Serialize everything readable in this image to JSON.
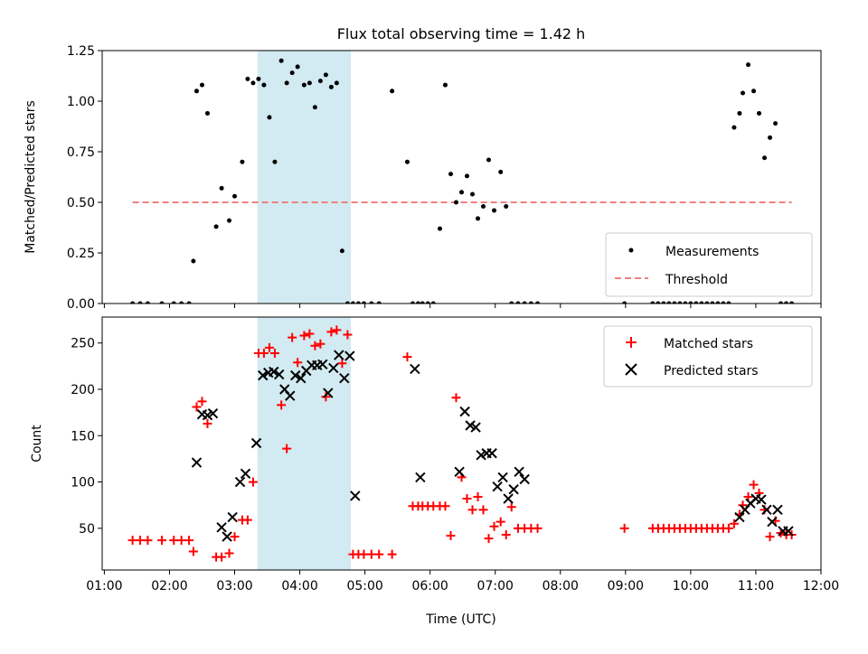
{
  "chart_data": [
    {
      "type": "scatter",
      "title": "Flux total observing time = 1.42 h",
      "xlabel": "",
      "ylabel": "Matched/Predicted stars",
      "xlim": [
        "00:58",
        "12:00"
      ],
      "ylim": [
        0,
        1.25
      ],
      "yticks": [
        "0.00",
        "0.25",
        "0.50",
        "0.75",
        "1.00",
        "1.25"
      ],
      "shaded_interval": [
        "03:21",
        "04:47"
      ],
      "shade_color": "#add8e6",
      "legend_location": "lower-right",
      "series": [
        {
          "name": "Measurements",
          "color": "#000000",
          "marker": "dot",
          "x": [
            "01:26",
            "01:33",
            "01:40",
            "01:53",
            "02:04",
            "02:11",
            "02:18",
            "02:22",
            "02:25",
            "02:30",
            "02:35",
            "02:43",
            "02:48",
            "02:55",
            "03:00",
            "03:07",
            "03:12",
            "03:17",
            "03:22",
            "03:27",
            "03:32",
            "03:37",
            "03:43",
            "03:48",
            "03:53",
            "03:58",
            "04:04",
            "04:09",
            "04:14",
            "04:19",
            "04:24",
            "04:29",
            "04:34",
            "04:39",
            "04:44",
            "04:49",
            "04:54",
            "04:59",
            "05:06",
            "05:13",
            "05:25",
            "05:39",
            "05:44",
            "05:49",
            "05:53",
            "05:58",
            "06:03",
            "06:09",
            "06:14",
            "06:19",
            "06:24",
            "06:29",
            "06:34",
            "06:39",
            "06:44",
            "06:49",
            "06:54",
            "06:59",
            "07:05",
            "07:10",
            "07:15",
            "07:21",
            "07:27",
            "07:33",
            "07:39",
            "08:59",
            "09:25",
            "09:30",
            "09:35",
            "09:40",
            "09:45",
            "09:50",
            "09:55",
            "10:00",
            "10:05",
            "10:10",
            "10:15",
            "10:20",
            "10:25",
            "10:30",
            "10:35",
            "10:40",
            "10:45",
            "10:48",
            "10:53",
            "10:58",
            "11:03",
            "11:08",
            "11:13",
            "11:18",
            "11:23",
            "11:28",
            "11:33"
          ],
          "y": [
            0,
            0,
            0,
            0,
            0,
            0,
            0,
            0.21,
            1.05,
            1.08,
            0.94,
            0.38,
            0.57,
            0.41,
            0.53,
            0.7,
            1.11,
            1.09,
            1.11,
            1.08,
            0.92,
            0.7,
            1.2,
            1.09,
            1.14,
            1.17,
            1.08,
            1.09,
            0.97,
            1.1,
            1.13,
            1.07,
            1.09,
            0.26,
            0,
            0,
            0,
            0,
            0,
            0,
            1.05,
            0.7,
            0,
            0,
            0,
            0,
            0,
            0.37,
            1.08,
            0.64,
            0.5,
            0.55,
            0.63,
            0.54,
            0.42,
            0.48,
            0.71,
            0.46,
            0.65,
            0.48,
            0,
            0,
            0,
            0,
            0,
            0,
            0,
            0,
            0,
            0,
            0,
            0,
            0,
            0,
            0,
            0,
            0,
            0,
            0,
            0,
            0,
            0.87,
            0.94,
            1.04,
            1.18,
            1.05,
            0.94,
            0.72,
            0.82,
            0.89,
            0,
            0,
            0
          ]
        },
        {
          "name": "Threshold",
          "color": "#f08080",
          "style": "dashed",
          "x": [
            "01:26",
            "11:33"
          ],
          "y": [
            0.5,
            0.5
          ]
        }
      ]
    },
    {
      "type": "scatter",
      "title": "",
      "xlabel": "Time (UTC)",
      "ylabel": "Count",
      "xlim": [
        "00:58",
        "12:00"
      ],
      "ylim": [
        5,
        278
      ],
      "yticks": [
        "50",
        "100",
        "150",
        "200",
        "250"
      ],
      "xticks": [
        "01:00",
        "02:00",
        "03:00",
        "04:00",
        "05:00",
        "06:00",
        "07:00",
        "08:00",
        "09:00",
        "10:00",
        "11:00",
        "12:00"
      ],
      "shaded_interval": [
        "03:21",
        "04:47"
      ],
      "shade_color": "#add8e6",
      "legend_location": "upper-right",
      "series": [
        {
          "name": "Matched stars",
          "color": "#ff0000",
          "marker": "plus",
          "x": [
            "01:26",
            "01:33",
            "01:40",
            "01:53",
            "02:04",
            "02:11",
            "02:18",
            "02:22",
            "02:25",
            "02:30",
            "02:35",
            "02:43",
            "02:48",
            "02:55",
            "03:00",
            "03:07",
            "03:12",
            "03:17",
            "03:22",
            "03:27",
            "03:32",
            "03:37",
            "03:43",
            "03:48",
            "03:53",
            "03:58",
            "04:04",
            "04:09",
            "04:14",
            "04:19",
            "04:24",
            "04:29",
            "04:34",
            "04:39",
            "04:44",
            "04:49",
            "04:54",
            "04:59",
            "05:06",
            "05:13",
            "05:25",
            "05:39",
            "05:44",
            "05:49",
            "05:53",
            "05:58",
            "06:03",
            "06:09",
            "06:14",
            "06:19",
            "06:24",
            "06:29",
            "06:34",
            "06:39",
            "06:44",
            "06:49",
            "06:54",
            "06:59",
            "07:05",
            "07:10",
            "07:15",
            "07:21",
            "07:27",
            "07:33",
            "07:39",
            "08:59",
            "09:25",
            "09:30",
            "09:35",
            "09:40",
            "09:45",
            "09:50",
            "09:55",
            "10:00",
            "10:05",
            "10:10",
            "10:15",
            "10:20",
            "10:25",
            "10:30",
            "10:35",
            "10:40",
            "10:45",
            "10:48",
            "10:53",
            "10:58",
            "11:03",
            "11:08",
            "11:13",
            "11:18",
            "11:23",
            "11:28",
            "11:33"
          ],
          "y": [
            37,
            37,
            37,
            37,
            37,
            37,
            37,
            25,
            181,
            187,
            163,
            19,
            19,
            23,
            41,
            59,
            59,
            100,
            239,
            239,
            245,
            239,
            183,
            136,
            256,
            229,
            258,
            260,
            247,
            249,
            192,
            262,
            264,
            228,
            259,
            22,
            22,
            22,
            22,
            22,
            22,
            235,
            74,
            74,
            74,
            74,
            74,
            74,
            74,
            42,
            191,
            105,
            82,
            70,
            84,
            70,
            39,
            52,
            57,
            43,
            73,
            50,
            50,
            50,
            50,
            50,
            50,
            50,
            50,
            50,
            50,
            50,
            50,
            50,
            50,
            50,
            50,
            50,
            50,
            50,
            50,
            55,
            65,
            75,
            84,
            97,
            88,
            70,
            41,
            58,
            45,
            43,
            43
          ]
        },
        {
          "name": "Predicted stars",
          "color": "#000000",
          "marker": "x",
          "x": [
            "02:25",
            "02:30",
            "02:35",
            "02:40",
            "02:48",
            "02:53",
            "02:58",
            "03:05",
            "03:10",
            "03:20",
            "03:26",
            "03:31",
            "03:36",
            "03:41",
            "03:46",
            "03:51",
            "03:56",
            "04:01",
            "04:06",
            "04:11",
            "04:16",
            "04:21",
            "04:26",
            "04:31",
            "04:36",
            "04:41",
            "04:46",
            "04:51",
            "05:46",
            "05:51",
            "06:27",
            "06:32",
            "06:37",
            "06:42",
            "06:47",
            "06:52",
            "06:57",
            "07:02",
            "07:07",
            "07:12",
            "07:17",
            "07:22",
            "07:27",
            "10:45",
            "10:50",
            "10:55",
            "11:00",
            "11:05",
            "11:10",
            "11:15",
            "11:20",
            "11:25",
            "11:30"
          ],
          "y": [
            121,
            173,
            172,
            174,
            51,
            41,
            62,
            100,
            109,
            142,
            215,
            218,
            219,
            216,
            200,
            193,
            215,
            212,
            220,
            226,
            226,
            227,
            196,
            223,
            237,
            212,
            236,
            85,
            222,
            105,
            111,
            176,
            161,
            159,
            129,
            131,
            131,
            95,
            105,
            82,
            92,
            111,
            103,
            62,
            70,
            77,
            82,
            81,
            70,
            57,
            70,
            47,
            47
          ]
        }
      ]
    }
  ]
}
